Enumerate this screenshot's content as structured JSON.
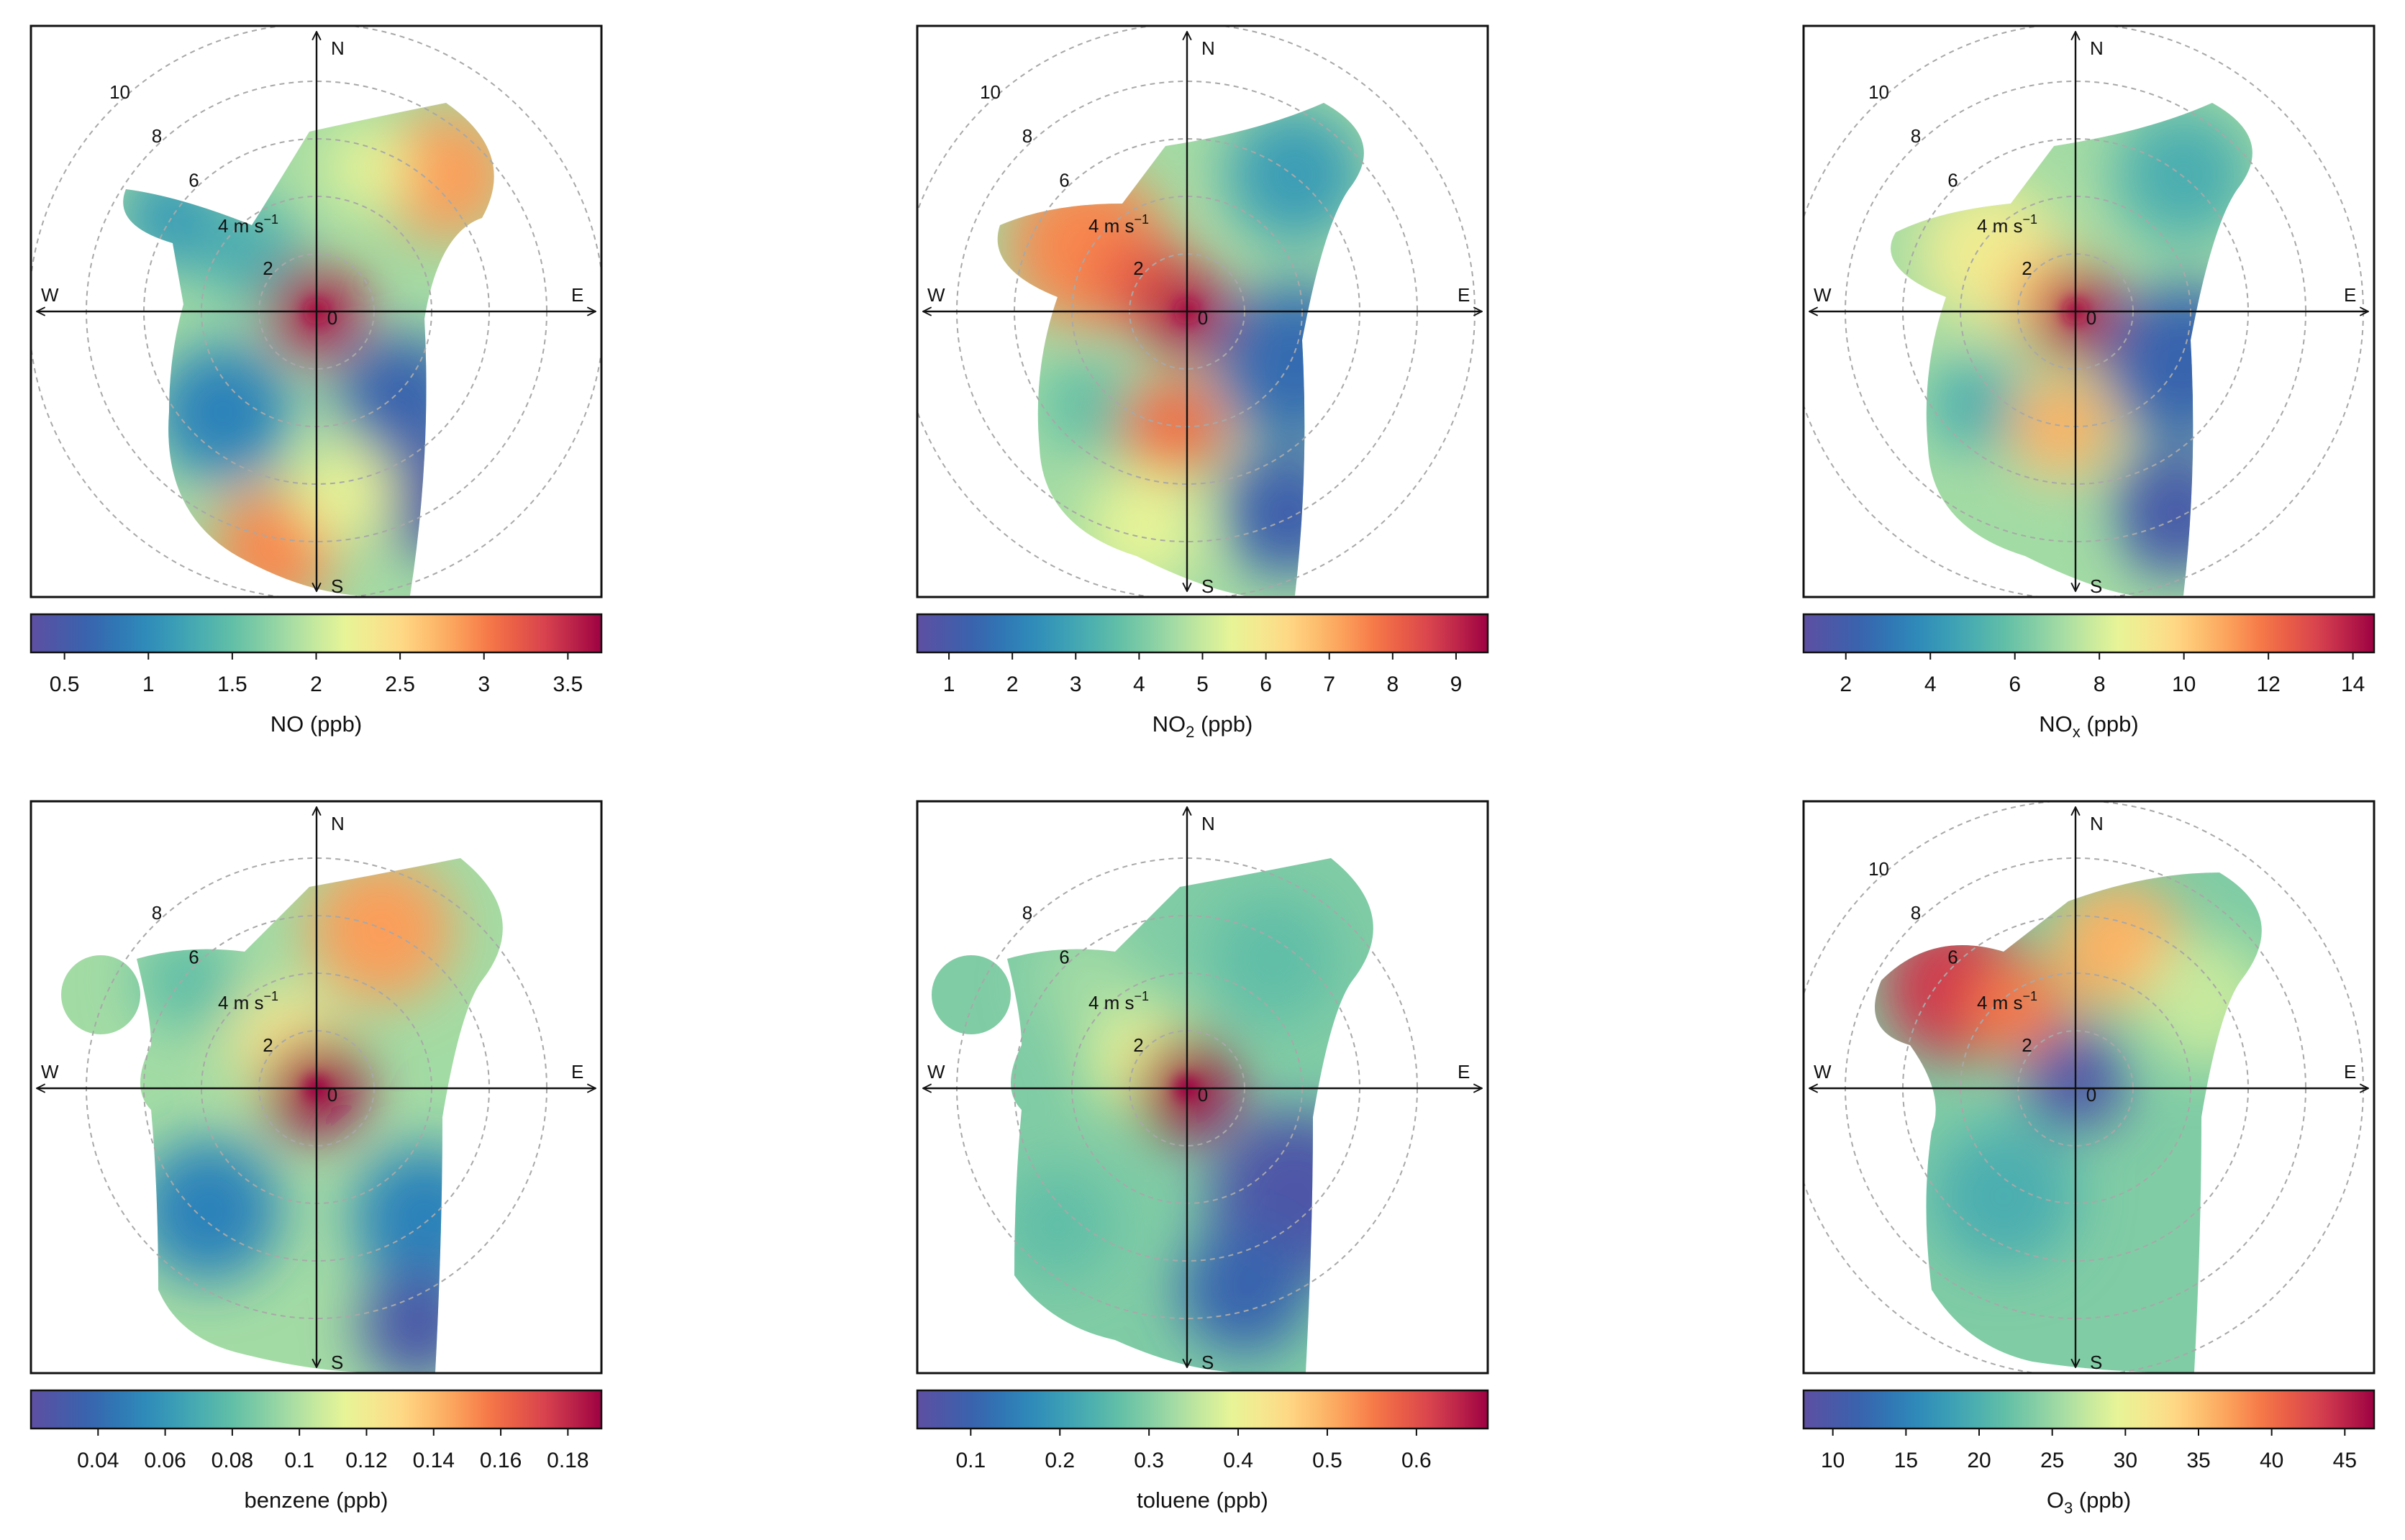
{
  "directions": {
    "n": "N",
    "s": "S",
    "e": "E",
    "w": "W"
  },
  "wind_unit": "4 m s",
  "wind_unit_exp": "−1",
  "chart_data": [
    {
      "type": "heatmap",
      "subtype": "polar-plot",
      "panel": "NO",
      "title": "NO (ppb)",
      "legend_label": "NO (ppb)",
      "label_main": "NO",
      "label_sub": "",
      "label_tail": " (ppb)",
      "colorbar_range": [
        0.3,
        3.7
      ],
      "colorbar_ticks": [
        0.5,
        1,
        1.5,
        2,
        2.5,
        3,
        3.5
      ],
      "colorbar_tick_labels": [
        "0.5",
        "1",
        "1.5",
        "2",
        "2.5",
        "3",
        "3.5"
      ],
      "radial_ring_labels": [
        "10",
        "8",
        "6",
        "2",
        "0"
      ],
      "wind_speed_rings_ms": [
        2,
        4,
        6,
        8,
        10
      ],
      "hotspots": [
        {
          "direction": "calm",
          "speed_ms": 0,
          "value": 3.6
        },
        {
          "direction": "NE",
          "speed_ms": 7,
          "value": 2.8
        },
        {
          "direction": "SSW",
          "speed_ms": 10,
          "value": 3.0
        }
      ]
    },
    {
      "type": "heatmap",
      "subtype": "polar-plot",
      "panel": "NO2",
      "title": "NO2 (ppb)",
      "legend_label": "NO2 (ppb)",
      "label_main": "NO",
      "label_sub": "2",
      "label_tail": " (ppb)",
      "colorbar_range": [
        0.5,
        9.5
      ],
      "colorbar_ticks": [
        1,
        2,
        3,
        4,
        5,
        6,
        7,
        8,
        9
      ],
      "colorbar_tick_labels": [
        "1",
        "2",
        "3",
        "4",
        "5",
        "6",
        "7",
        "8",
        "9"
      ],
      "radial_ring_labels": [
        "10",
        "8",
        "6",
        "2",
        "0"
      ],
      "wind_speed_rings_ms": [
        2,
        4,
        6,
        8,
        10
      ],
      "hotspots": [
        {
          "direction": "calm",
          "speed_ms": 0,
          "value": 9.2
        },
        {
          "direction": "WNW",
          "speed_ms": 5,
          "value": 8.0
        },
        {
          "direction": "S",
          "speed_ms": 3,
          "value": 7.8
        }
      ]
    },
    {
      "type": "heatmap",
      "subtype": "polar-plot",
      "panel": "NOx",
      "title": "NOx (ppb)",
      "legend_label": "NOx (ppb)",
      "label_main": "NO",
      "label_sub": "x",
      "label_tail": " (ppb)",
      "colorbar_range": [
        1,
        14.5
      ],
      "colorbar_ticks": [
        2,
        4,
        6,
        8,
        10,
        12,
        14
      ],
      "colorbar_tick_labels": [
        "2",
        "4",
        "6",
        "8",
        "10",
        "12",
        "14"
      ],
      "radial_ring_labels": [
        "10",
        "8",
        "6",
        "2",
        "0"
      ],
      "wind_speed_rings_ms": [
        2,
        4,
        6,
        8,
        10
      ],
      "hotspots": [
        {
          "direction": "calm",
          "speed_ms": 0,
          "value": 14.3
        },
        {
          "direction": "WNW",
          "speed_ms": 5,
          "value": 10.0
        },
        {
          "direction": "S",
          "speed_ms": 3,
          "value": 10.0
        }
      ]
    },
    {
      "type": "heatmap",
      "subtype": "polar-plot",
      "panel": "benzene",
      "title": "benzene (ppb)",
      "legend_label": "benzene (ppb)",
      "label_main": "benzene",
      "label_sub": "",
      "label_tail": " (ppb)",
      "colorbar_range": [
        0.02,
        0.19
      ],
      "colorbar_ticks": [
        0.04,
        0.06,
        0.08,
        0.1,
        0.12,
        0.14,
        0.16,
        0.18
      ],
      "colorbar_tick_labels": [
        "0.04",
        "0.06",
        "0.08",
        "0.1",
        "0.12",
        "0.14",
        "0.16",
        "0.18"
      ],
      "radial_ring_labels": [
        "8",
        "6",
        "2",
        "0"
      ],
      "wind_speed_rings_ms": [
        2,
        4,
        6,
        8
      ],
      "hotspots": [
        {
          "direction": "calm",
          "speed_ms": 0,
          "value": 0.18
        },
        {
          "direction": "NNE",
          "speed_ms": 6,
          "value": 0.13
        }
      ]
    },
    {
      "type": "heatmap",
      "subtype": "polar-plot",
      "panel": "toluene",
      "title": "toluene (ppb)",
      "legend_label": "toluene (ppb)",
      "label_main": "toluene",
      "label_sub": "",
      "label_tail": " (ppb)",
      "colorbar_range": [
        0.04,
        0.68
      ],
      "colorbar_ticks": [
        0.1,
        0.2,
        0.3,
        0.4,
        0.5,
        0.6
      ],
      "colorbar_tick_labels": [
        "0.1",
        "0.2",
        "0.3",
        "0.4",
        "0.5",
        "0.6"
      ],
      "radial_ring_labels": [
        "8",
        "6",
        "2",
        "0"
      ],
      "wind_speed_rings_ms": [
        2,
        4,
        6,
        8
      ],
      "hotspots": [
        {
          "direction": "calm",
          "speed_ms": 0,
          "value": 0.66
        }
      ]
    },
    {
      "type": "heatmap",
      "subtype": "polar-plot",
      "panel": "O3",
      "title": "O3 (ppb)",
      "legend_label": "O3 (ppb)",
      "label_main": "O",
      "label_sub": "3",
      "label_tail": " (ppb)",
      "colorbar_range": [
        8,
        47
      ],
      "colorbar_ticks": [
        10,
        15,
        20,
        25,
        30,
        35,
        40,
        45
      ],
      "colorbar_tick_labels": [
        "10",
        "15",
        "20",
        "25",
        "30",
        "35",
        "40",
        "45"
      ],
      "radial_ring_labels": [
        "10",
        "8",
        "6",
        "2",
        "0"
      ],
      "wind_speed_rings_ms": [
        2,
        4,
        6,
        8,
        10
      ],
      "hotspots": [
        {
          "direction": "calm",
          "speed_ms": 0,
          "value": 10
        },
        {
          "direction": "NW",
          "speed_ms": 7,
          "value": 46
        },
        {
          "direction": "N",
          "speed_ms": 6,
          "value": 34
        }
      ]
    }
  ]
}
